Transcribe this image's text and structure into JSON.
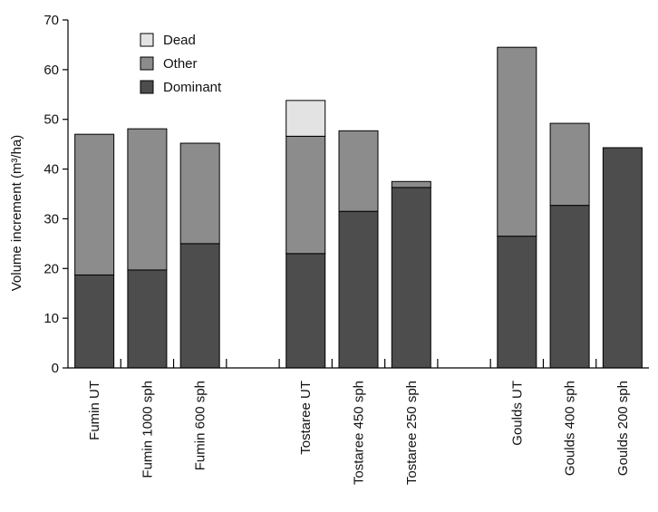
{
  "chart_data": {
    "type": "bar",
    "stacked": true,
    "ylabel": "Volume increment (m³/ha)",
    "ylim": [
      0,
      70
    ],
    "yticks": [
      0,
      10,
      20,
      30,
      40,
      50,
      60,
      70
    ],
    "categories": [
      "Fumin UT",
      "Fumin 1000 sph",
      "Fumin 600 sph",
      "",
      "Tostaree UT",
      "Tostaree 450 sph",
      "Tostaree 250 sph",
      "",
      "Goulds UT",
      "Goulds 400 sph",
      "Goulds 200 sph"
    ],
    "series": [
      {
        "name": "Dominant",
        "color": "#4d4d4d",
        "values": [
          18.7,
          19.7,
          25.0,
          null,
          23.0,
          31.5,
          36.3,
          null,
          26.5,
          32.7,
          44.3
        ]
      },
      {
        "name": "Other",
        "color": "#8c8c8c",
        "values": [
          28.3,
          28.4,
          20.2,
          null,
          23.6,
          16.2,
          1.2,
          null,
          38.0,
          16.5,
          0
        ]
      },
      {
        "name": "Dead",
        "color": "#e3e3e3",
        "values": [
          0,
          0,
          0,
          null,
          7.2,
          0,
          0,
          null,
          0,
          0,
          0
        ]
      }
    ],
    "legend_order": [
      "Dead",
      "Other",
      "Dominant"
    ],
    "legend_position": "top-left",
    "grid": false
  }
}
